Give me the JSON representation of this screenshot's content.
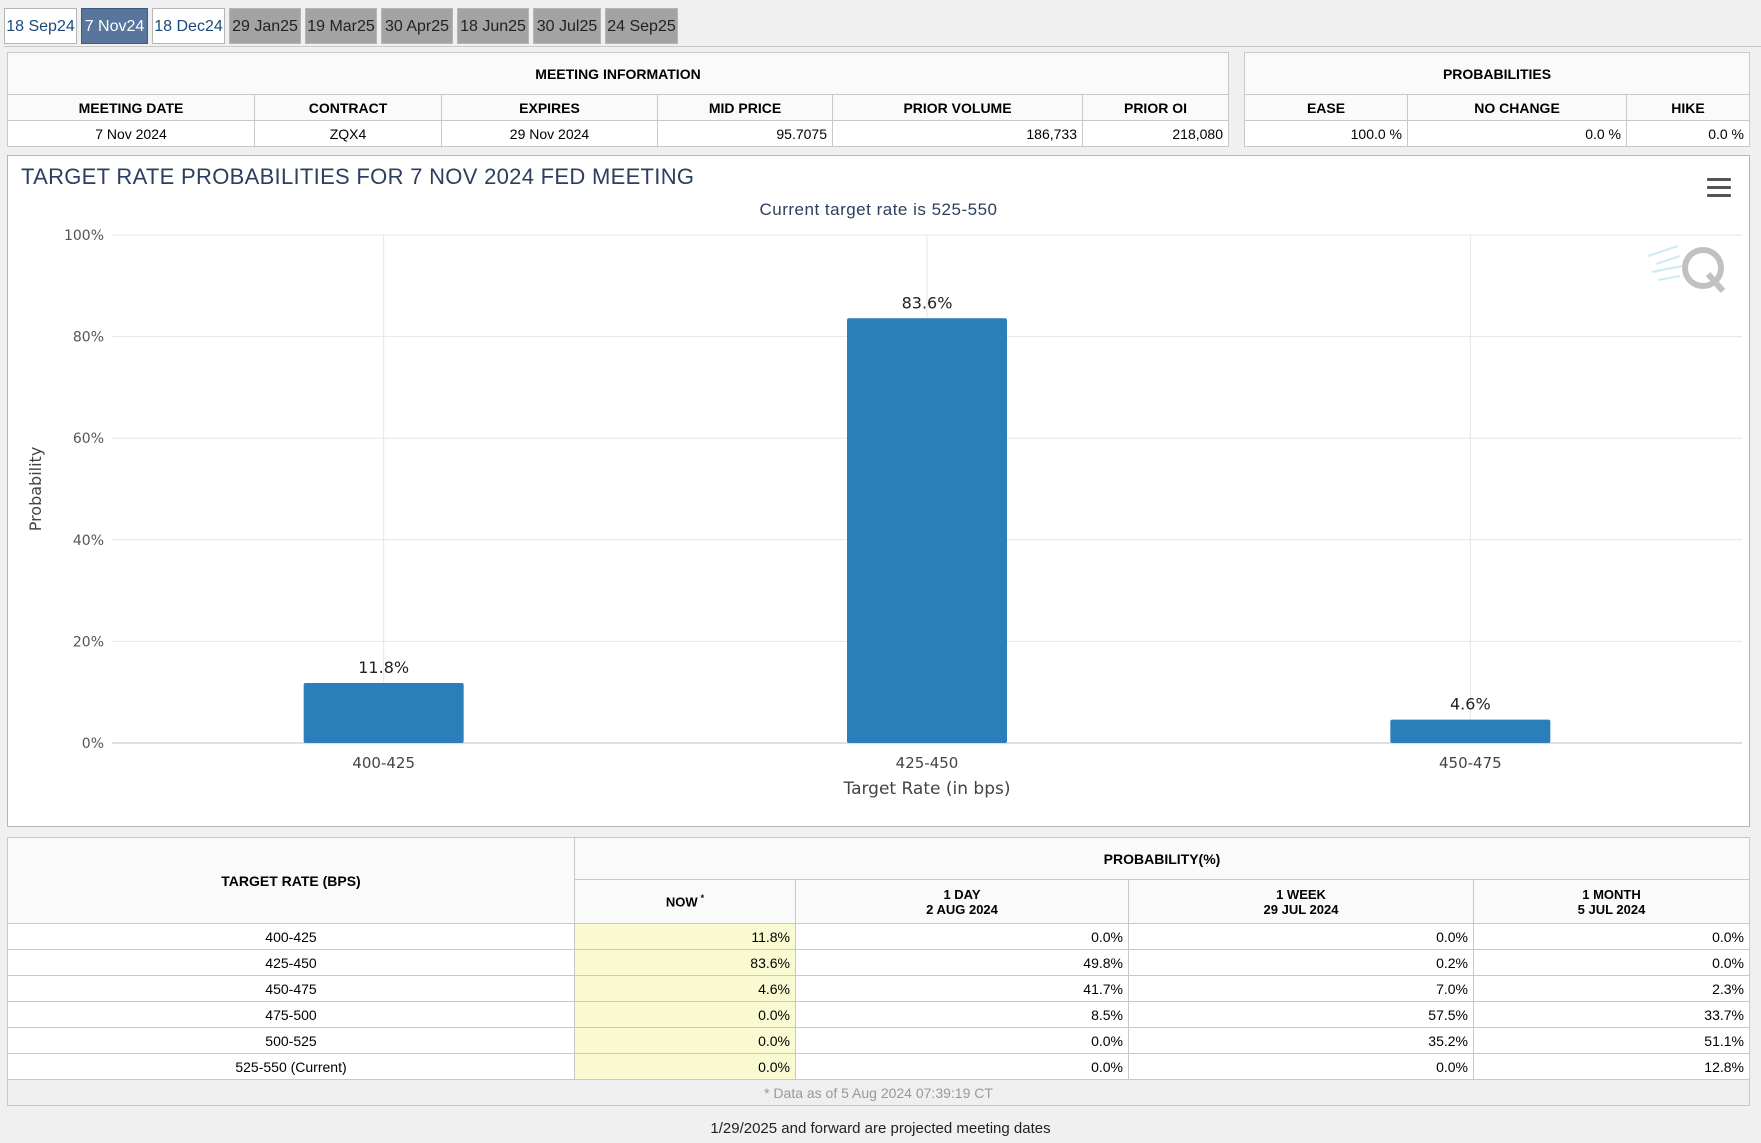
{
  "tabs": [
    {
      "label": "18 Sep24",
      "state": "past"
    },
    {
      "label": "7 Nov24",
      "state": "active"
    },
    {
      "label": "18 Dec24",
      "state": "past"
    },
    {
      "label": "29 Jan25",
      "state": "future"
    },
    {
      "label": "19 Mar25",
      "state": "future"
    },
    {
      "label": "30 Apr25",
      "state": "future"
    },
    {
      "label": "18 Jun25",
      "state": "future"
    },
    {
      "label": "30 Jul25",
      "state": "future"
    },
    {
      "label": "24 Sep25",
      "state": "future"
    }
  ],
  "meeting_info": {
    "title": "MEETING INFORMATION",
    "headers": [
      "MEETING DATE",
      "CONTRACT",
      "EXPIRES",
      "MID PRICE",
      "PRIOR VOLUME",
      "PRIOR OI"
    ],
    "values": [
      "7 Nov 2024",
      "ZQX4",
      "29 Nov 2024",
      "95.7075",
      "186,733",
      "218,080"
    ]
  },
  "probabilities": {
    "title": "PROBABILITIES",
    "headers": [
      "EASE",
      "NO CHANGE",
      "HIKE"
    ],
    "values": [
      "100.0 %",
      "0.0 %",
      "0.0 %"
    ]
  },
  "chart": {
    "title": "TARGET RATE PROBABILITIES FOR 7 NOV 2024 FED MEETING",
    "subtitle": "Current target rate is 525-550",
    "menu_icon": "hamburger-menu-icon",
    "watermark_icon": "q-logo-icon"
  },
  "chart_data": {
    "type": "bar",
    "categories": [
      "400-425",
      "425-450",
      "450-475"
    ],
    "values": [
      11.8,
      83.6,
      4.6
    ],
    "value_labels": [
      "11.8%",
      "83.6%",
      "4.6%"
    ],
    "xlabel": "Target Rate (in bps)",
    "ylabel": "Probability",
    "ylim": [
      0,
      100
    ],
    "yticks": [
      0,
      20,
      40,
      60,
      80,
      100
    ],
    "ytick_labels": [
      "0%",
      "20%",
      "40%",
      "60%",
      "80%",
      "100%"
    ],
    "bar_color": "#2a7fba",
    "grid": true
  },
  "prob_table": {
    "col_title": "TARGET RATE (BPS)",
    "group_title": "PROBABILITY(%)",
    "columns": [
      {
        "line1": "NOW",
        "line2": ""
      },
      {
        "line1": "1 DAY",
        "line2": "2 AUG 2024"
      },
      {
        "line1": "1 WEEK",
        "line2": "29 JUL 2024"
      },
      {
        "line1": "1 MONTH",
        "line2": "5 JUL 2024"
      }
    ],
    "now_marker": "*",
    "rows": [
      {
        "rate": "400-425",
        "values": [
          "11.8%",
          "0.0%",
          "0.0%",
          "0.0%"
        ]
      },
      {
        "rate": "425-450",
        "values": [
          "83.6%",
          "49.8%",
          "0.2%",
          "0.0%"
        ]
      },
      {
        "rate": "450-475",
        "values": [
          "4.6%",
          "41.7%",
          "7.0%",
          "2.3%"
        ]
      },
      {
        "rate": "475-500",
        "values": [
          "0.0%",
          "8.5%",
          "57.5%",
          "33.7%"
        ]
      },
      {
        "rate": "500-525",
        "values": [
          "0.0%",
          "0.0%",
          "35.2%",
          "51.1%"
        ]
      },
      {
        "rate": "525-550 (Current)",
        "values": [
          "0.0%",
          "0.0%",
          "0.0%",
          "12.8%"
        ]
      }
    ],
    "footnote": "* Data as of 5 Aug 2024 07:39:19 CT"
  },
  "footer": "1/29/2025 and forward are projected meeting dates",
  "colors": {
    "accent": "#58759c",
    "bar": "#2a7fba",
    "now_bg": "#fafad2",
    "title": "#2b3f5e"
  }
}
